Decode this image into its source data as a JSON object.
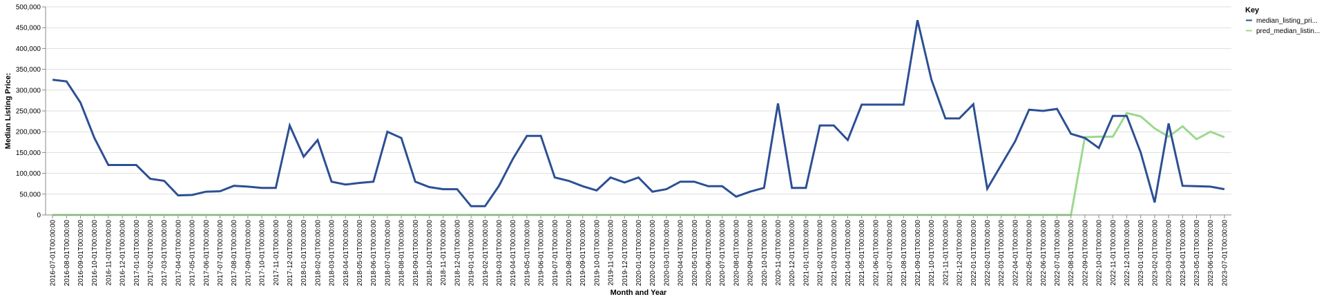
{
  "chart_data": {
    "type": "line",
    "xlabel": "Month and Year",
    "ylabel": "Median Listing Price:",
    "ylim": [
      0,
      500000
    ],
    "y_ticks": [
      "0",
      "50,000",
      "100,000",
      "150,000",
      "200,000",
      "250,000",
      "300,000",
      "350,000",
      "400,000",
      "450,000",
      "500,000"
    ],
    "grid": true,
    "legend": {
      "title": "Key",
      "placement": "top-right",
      "entries": [
        "median_listing_pri...",
        "pred_median_listin..."
      ]
    },
    "x": [
      "2016-07-01T00:00:00",
      "2016-08-01T00:00:00",
      "2016-09-01T00:00:00",
      "2016-10-01T00:00:00",
      "2016-11-01T00:00:00",
      "2016-12-01T00:00:00",
      "2017-01-01T00:00:00",
      "2017-02-01T00:00:00",
      "2017-03-01T00:00:00",
      "2017-04-01T00:00:00",
      "2017-05-01T00:00:00",
      "2017-06-01T00:00:00",
      "2017-07-01T00:00:00",
      "2017-08-01T00:00:00",
      "2017-09-01T00:00:00",
      "2017-10-01T00:00:00",
      "2017-11-01T00:00:00",
      "2017-12-01T00:00:00",
      "2018-01-01T00:00:00",
      "2018-02-01T00:00:00",
      "2018-03-01T00:00:00",
      "2018-04-01T00:00:00",
      "2018-05-01T00:00:00",
      "2018-06-01T00:00:00",
      "2018-07-01T00:00:00",
      "2018-08-01T00:00:00",
      "2018-09-01T00:00:00",
      "2018-10-01T00:00:00",
      "2018-11-01T00:00:00",
      "2018-12-01T00:00:00",
      "2019-01-01T00:00:00",
      "2019-02-01T00:00:00",
      "2019-03-01T00:00:00",
      "2019-04-01T00:00:00",
      "2019-05-01T00:00:00",
      "2019-06-01T00:00:00",
      "2019-07-01T00:00:00",
      "2019-08-01T00:00:00",
      "2019-09-01T00:00:00",
      "2019-10-01T00:00:00",
      "2019-11-01T00:00:00",
      "2019-12-01T00:00:00",
      "2020-01-01T00:00:00",
      "2020-02-01T00:00:00",
      "2020-03-01T00:00:00",
      "2020-04-01T00:00:00",
      "2020-05-01T00:00:00",
      "2020-06-01T00:00:00",
      "2020-07-01T00:00:00",
      "2020-08-01T00:00:00",
      "2020-09-01T00:00:00",
      "2020-10-01T00:00:00",
      "2020-11-01T00:00:00",
      "2020-12-01T00:00:00",
      "2021-01-01T00:00:00",
      "2021-02-01T00:00:00",
      "2021-03-01T00:00:00",
      "2021-04-01T00:00:00",
      "2021-05-01T00:00:00",
      "2021-06-01T00:00:00",
      "2021-07-01T00:00:00",
      "2021-08-01T00:00:00",
      "2021-09-01T00:00:00",
      "2021-10-01T00:00:00",
      "2021-11-01T00:00:00",
      "2021-12-01T00:00:00",
      "2022-01-01T00:00:00",
      "2022-02-01T00:00:00",
      "2022-03-01T00:00:00",
      "2022-04-01T00:00:00",
      "2022-05-01T00:00:00",
      "2022-06-01T00:00:00",
      "2022-07-01T00:00:00",
      "2022-08-01T00:00:00",
      "2022-09-01T00:00:00",
      "2022-10-01T00:00:00",
      "2022-11-01T00:00:00",
      "2022-12-01T00:00:00",
      "2023-01-01T00:00:00",
      "2023-02-01T00:00:00",
      "2023-03-01T00:00:00",
      "2023-04-01T00:00:00",
      "2023-05-01T00:00:00",
      "2023-06-01T00:00:00",
      "2023-07-01T00:00:00"
    ],
    "series": [
      {
        "name": "median_listing_pri...",
        "color": "#2c4f94",
        "values": [
          325000,
          321000,
          270000,
          185000,
          120000,
          120000,
          120000,
          87000,
          82000,
          47000,
          48000,
          56000,
          57000,
          70000,
          68000,
          65000,
          65000,
          215000,
          140000,
          180000,
          80000,
          73000,
          77000,
          80000,
          200000,
          185000,
          80000,
          67000,
          62000,
          62000,
          21000,
          21000,
          70000,
          135000,
          190000,
          190000,
          90000,
          82000,
          69000,
          59000,
          90000,
          78000,
          90000,
          56000,
          62000,
          80000,
          80000,
          69000,
          69000,
          44000,
          56000,
          65000,
          268000,
          65000,
          65000,
          215000,
          215000,
          180000,
          265000,
          265000,
          265000,
          265000,
          468000,
          325000,
          232000,
          232000,
          266000,
          63000,
          120000,
          177000,
          253000,
          250000,
          255000,
          195000,
          185000,
          161000,
          238000,
          238000,
          150000,
          30000,
          220000,
          70000,
          69000,
          68000,
          62000
        ]
      },
      {
        "name": "pred_median_listin...",
        "color": "#9bd98d",
        "values": [
          0,
          0,
          0,
          0,
          0,
          0,
          0,
          0,
          0,
          0,
          0,
          0,
          0,
          0,
          0,
          0,
          0,
          0,
          0,
          0,
          0,
          0,
          0,
          0,
          0,
          0,
          0,
          0,
          0,
          0,
          0,
          0,
          0,
          0,
          0,
          0,
          0,
          0,
          0,
          0,
          0,
          0,
          0,
          0,
          0,
          0,
          0,
          0,
          0,
          0,
          0,
          0,
          0,
          0,
          0,
          0,
          0,
          0,
          0,
          0,
          0,
          0,
          0,
          0,
          0,
          0,
          0,
          0,
          0,
          0,
          0,
          0,
          0,
          0,
          187000,
          188000,
          188000,
          245000,
          237000,
          208000,
          188000,
          213000,
          182000,
          200000,
          187000
        ]
      }
    ]
  }
}
